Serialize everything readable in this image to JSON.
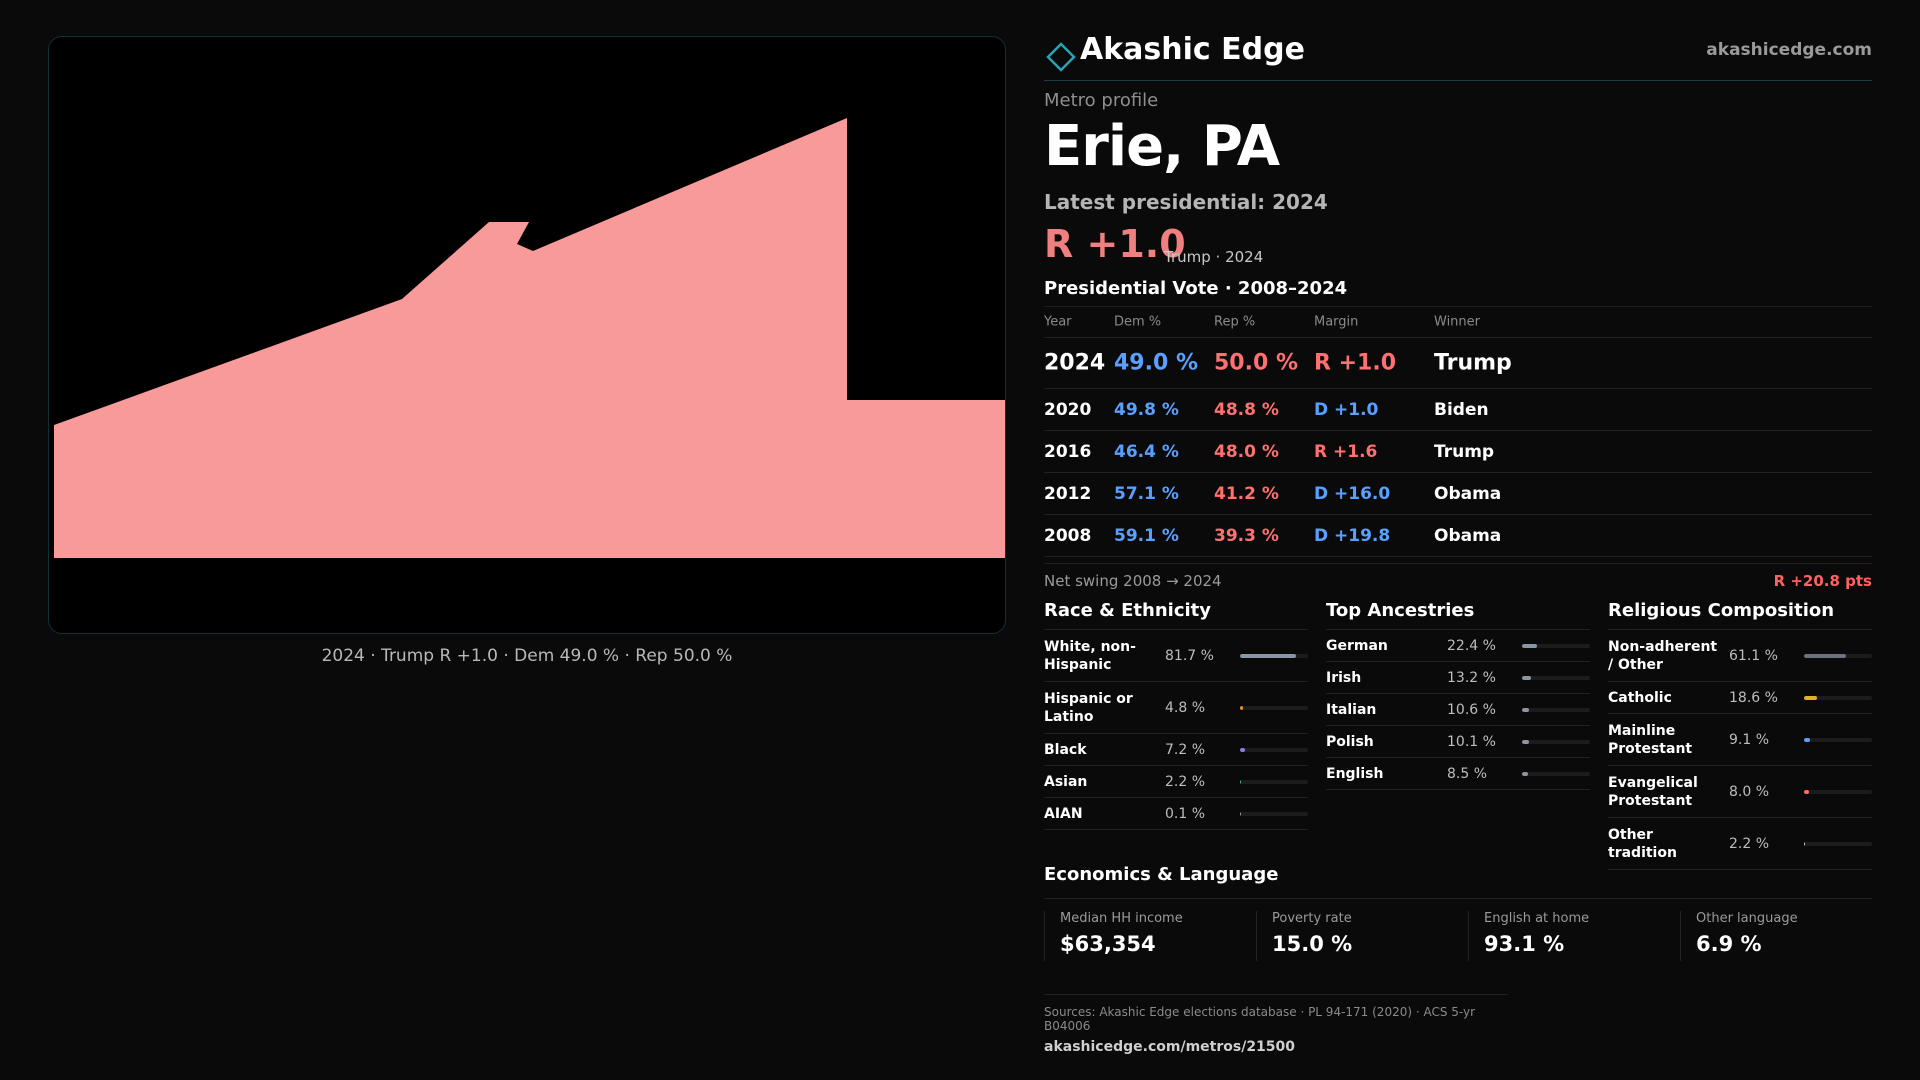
{
  "brand": {
    "name": "Akashic Edge",
    "url": "akashicedge.com",
    "accent": "#2aa3b3"
  },
  "profile": {
    "eyebrow": "Metro profile",
    "name": "Erie, PA",
    "latest_label": "Latest presidential: 2024",
    "latest_margin": "R +1.0",
    "latest_sub": "Trump · 2024"
  },
  "map": {
    "caption": "2024 · Trump R +1.0 · Dem 49.0 % · Rep 50.0 %",
    "fill_color": "#f99a9a"
  },
  "votes": {
    "title": "Presidential Vote · 2008–2024",
    "headers": [
      "Year",
      "Dem %",
      "Rep %",
      "Margin",
      "Winner"
    ],
    "rows": [
      {
        "year": "2024",
        "dem": "49.0 %",
        "rep": "50.0 %",
        "margin": "R +1.0",
        "winner": "Trump"
      },
      {
        "year": "2020",
        "dem": "49.8 %",
        "rep": "48.8 %",
        "margin": "D +1.0",
        "winner": "Biden"
      },
      {
        "year": "2016",
        "dem": "46.4 %",
        "rep": "48.0 %",
        "margin": "R +1.6",
        "winner": "Trump"
      },
      {
        "year": "2012",
        "dem": "57.1 %",
        "rep": "41.2 %",
        "margin": "D +16.0",
        "winner": "Obama"
      },
      {
        "year": "2008",
        "dem": "59.1 %",
        "rep": "39.3 %",
        "margin": "D +19.8",
        "winner": "Obama"
      }
    ],
    "swing_label": "Net swing 2008 → 2024",
    "swing_value": "R +20.8 pts"
  },
  "race": {
    "title": "Race & Ethnicity",
    "rows": [
      {
        "label": "White, non-Hispanic",
        "value": "81.7 %",
        "pct": 81.7,
        "color": "#8a95a5"
      },
      {
        "label": "Hispanic or Latino",
        "value": "4.8 %",
        "pct": 4.8,
        "color": "#e0962a"
      },
      {
        "label": "Black",
        "value": "7.2 %",
        "pct": 7.2,
        "color": "#8e7be0"
      },
      {
        "label": "Asian",
        "value": "2.2 %",
        "pct": 2.2,
        "color": "#3fc08a"
      },
      {
        "label": "AIAN",
        "value": "0.1 %",
        "pct": 0.1,
        "color": "#999999"
      }
    ]
  },
  "ancestry": {
    "title": "Top Ancestries",
    "rows": [
      {
        "label": "German",
        "value": "22.4 %",
        "pct": 22.4,
        "color": "#8a95a5"
      },
      {
        "label": "Irish",
        "value": "13.2 %",
        "pct": 13.2,
        "color": "#8a95a5"
      },
      {
        "label": "Italian",
        "value": "10.6 %",
        "pct": 10.6,
        "color": "#8a95a5"
      },
      {
        "label": "Polish",
        "value": "10.1 %",
        "pct": 10.1,
        "color": "#8a95a5"
      },
      {
        "label": "English",
        "value": "8.5 %",
        "pct": 8.5,
        "color": "#8a95a5"
      }
    ]
  },
  "religion": {
    "title": "Religious Composition",
    "rows": [
      {
        "label": "Non-adherent / Other",
        "value": "61.1 %",
        "pct": 61.1,
        "color": "#6b7280"
      },
      {
        "label": "Catholic",
        "value": "18.6 %",
        "pct": 18.6,
        "color": "#e0b22a"
      },
      {
        "label": "Mainline Protestant",
        "value": "9.1 %",
        "pct": 9.1,
        "color": "#5aa0ff"
      },
      {
        "label": "Evangelical Protestant",
        "value": "8.0 %",
        "pct": 8.0,
        "color": "#ff6b6b"
      },
      {
        "label": "Other tradition",
        "value": "2.2 %",
        "pct": 2.2,
        "color": "#cccccc"
      }
    ]
  },
  "economics": {
    "title": "Economics & Language",
    "items": [
      {
        "label": "Median HH income",
        "value": "$63,354"
      },
      {
        "label": "Poverty rate",
        "value": "15.0 %"
      },
      {
        "label": "English at home",
        "value": "93.1 %"
      },
      {
        "label": "Other language",
        "value": "6.9 %"
      }
    ]
  },
  "footer": {
    "sources": "Sources: Akashic Edge elections database · PL 94-171 (2020) · ACS 5-yr B04006",
    "link": "akashicedge.com/metros/21500"
  },
  "colors": {
    "dem": "#5aa0ff",
    "rep": "#ff7070"
  }
}
